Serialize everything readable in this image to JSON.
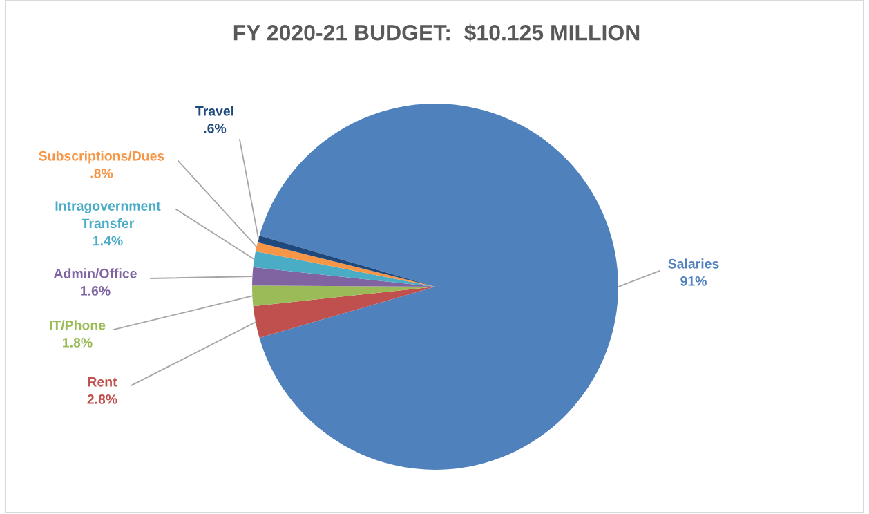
{
  "chart_data": {
    "type": "pie",
    "title": "FY 2020-21 BUDGET:  $10.125 MILLION",
    "categories": [
      "Salaries",
      "Rent",
      "IT/Phone",
      "Admin/Office",
      "Intragovernment Transfer",
      "Subscriptions/Dues",
      "Travel"
    ],
    "values": [
      91,
      2.8,
      1.8,
      1.6,
      1.4,
      0.8,
      0.6
    ],
    "value_labels": [
      "91%",
      "2.8%",
      "1.8%",
      "1.6%",
      "1.4%",
      ".8%",
      ".6%"
    ],
    "colors": [
      "#4f81bd",
      "#c0504d",
      "#9bbb59",
      "#8064a2",
      "#4bacc6",
      "#f79646",
      "#1f497d"
    ]
  }
}
